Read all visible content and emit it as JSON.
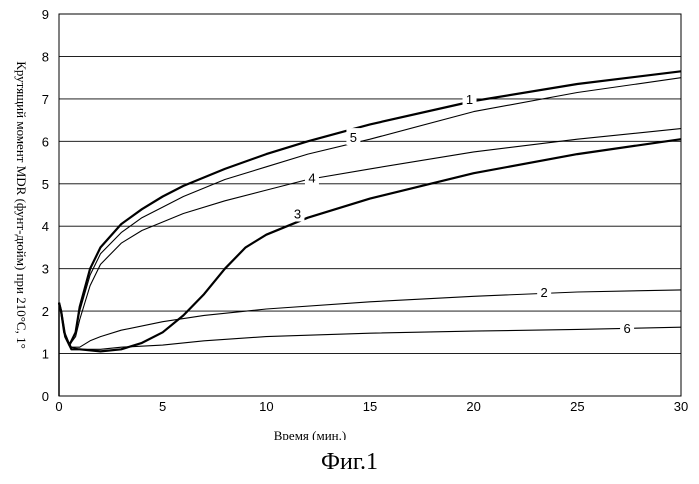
{
  "chart_data": {
    "type": "line",
    "xlabel": "Время (мин.)",
    "ylabel": "Крутящий момент MDR (фунт-дюйм) при 210°С, 1°",
    "xlim": [
      0,
      30
    ],
    "ylim": [
      0,
      9
    ],
    "x_ticks": [
      "0",
      "5",
      "10",
      "15",
      "20",
      "25",
      "30"
    ],
    "y_ticks": [
      "0",
      "1",
      "2",
      "3",
      "4",
      "5",
      "6",
      "7",
      "8",
      "9"
    ],
    "grid": "horizontal",
    "series": [
      {
        "name": "1",
        "thick": true,
        "x": [
          0,
          0.1,
          0.25,
          0.5,
          0.8,
          1,
          1.5,
          2,
          3,
          4,
          5,
          6,
          8,
          10,
          12,
          15,
          20,
          25,
          30
        ],
        "y": [
          2.2,
          2.0,
          1.5,
          1.2,
          1.5,
          2.1,
          3.0,
          3.5,
          4.05,
          4.4,
          4.7,
          4.95,
          5.35,
          5.7,
          6.0,
          6.4,
          6.95,
          7.35,
          7.65
        ]
      },
      {
        "name": "5",
        "thick": false,
        "x": [
          0,
          0.1,
          0.25,
          0.5,
          0.8,
          1,
          1.5,
          2,
          3,
          4,
          5,
          6,
          8,
          10,
          12,
          15,
          20,
          25,
          30
        ],
        "y": [
          2.2,
          2.0,
          1.5,
          1.2,
          1.5,
          2.0,
          2.85,
          3.35,
          3.85,
          4.2,
          4.45,
          4.7,
          5.1,
          5.4,
          5.7,
          6.05,
          6.7,
          7.15,
          7.5
        ]
      },
      {
        "name": "4",
        "thick": false,
        "x": [
          0,
          0.1,
          0.25,
          0.5,
          0.8,
          1,
          1.5,
          2,
          3,
          4,
          5,
          6,
          8,
          10,
          12,
          15,
          20,
          25,
          30
        ],
        "y": [
          2.2,
          2.0,
          1.5,
          1.2,
          1.4,
          1.8,
          2.6,
          3.1,
          3.6,
          3.9,
          4.1,
          4.3,
          4.6,
          4.85,
          5.1,
          5.35,
          5.75,
          6.05,
          6.3
        ]
      },
      {
        "name": "3",
        "thick": true,
        "x": [
          0,
          0.1,
          0.3,
          0.6,
          1,
          2,
          3,
          4,
          5,
          6,
          7,
          8,
          9,
          10,
          12,
          15,
          20,
          25,
          30
        ],
        "y": [
          2.2,
          2.0,
          1.4,
          1.1,
          1.1,
          1.05,
          1.1,
          1.25,
          1.5,
          1.9,
          2.4,
          3.0,
          3.5,
          3.8,
          4.2,
          4.65,
          5.25,
          5.7,
          6.05
        ]
      },
      {
        "name": "2",
        "thick": false,
        "x": [
          0,
          0.1,
          0.3,
          0.6,
          1,
          1.5,
          2,
          3,
          5,
          7,
          10,
          15,
          20,
          25,
          30
        ],
        "y": [
          2.2,
          2.0,
          1.4,
          1.15,
          1.15,
          1.3,
          1.4,
          1.55,
          1.75,
          1.9,
          2.05,
          2.22,
          2.35,
          2.45,
          2.5
        ]
      },
      {
        "name": "6",
        "thick": false,
        "x": [
          0,
          0.1,
          0.3,
          0.6,
          1,
          2,
          3,
          5,
          7,
          10,
          15,
          20,
          25,
          30
        ],
        "y": [
          2.2,
          2.0,
          1.4,
          1.15,
          1.1,
          1.1,
          1.15,
          1.2,
          1.3,
          1.4,
          1.48,
          1.53,
          1.57,
          1.62
        ]
      }
    ],
    "labels": [
      {
        "text": "1",
        "x": 19.8,
        "y": 7.0
      },
      {
        "text": "5",
        "x": 14.2,
        "y": 6.1
      },
      {
        "text": "4",
        "x": 12.2,
        "y": 5.15
      },
      {
        "text": "3",
        "x": 11.5,
        "y": 4.3
      },
      {
        "text": "2",
        "x": 23.4,
        "y": 2.45
      },
      {
        "text": "6",
        "x": 27.4,
        "y": 1.6
      }
    ]
  },
  "figure_caption": "Фиг.1"
}
